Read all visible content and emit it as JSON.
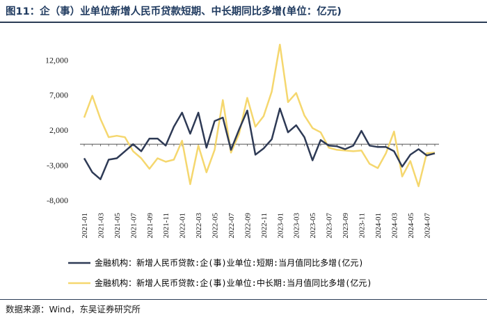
{
  "title": "图11：企（事）业单位新增人民币贷款短期、中长期同比多增(单位：亿元)",
  "source": "数据来源：Wind，东吴证券研究所",
  "colors": {
    "short": "#2e3a55",
    "long": "#f5d76e",
    "axis": "#555555",
    "text": "#1a1a1a"
  },
  "chart_data": {
    "type": "line",
    "ylim": [
      -8000,
      15000
    ],
    "yticks": [
      -8000,
      -3000,
      2000,
      7000,
      12000
    ],
    "ytick_labels": [
      "-8,000",
      "-3,000",
      "2,000",
      "7,000",
      "12,000"
    ],
    "x": [
      "2021-01",
      "2021-02",
      "2021-03",
      "2021-04",
      "2021-05",
      "2021-06",
      "2021-07",
      "2021-08",
      "2021-09",
      "2021-10",
      "2021-11",
      "2021-12",
      "2022-01",
      "2022-02",
      "2022-03",
      "2022-04",
      "2022-05",
      "2022-06",
      "2022-07",
      "2022-08",
      "2022-09",
      "2022-10",
      "2022-11",
      "2022-12",
      "2023-01",
      "2023-02",
      "2023-03",
      "2023-04",
      "2023-05",
      "2023-06",
      "2023-07",
      "2023-08",
      "2023-09",
      "2023-10",
      "2023-11",
      "2023-12",
      "2024-01",
      "2024-02",
      "2024-03",
      "2024-04",
      "2024-05",
      "2024-06",
      "2024-07",
      "2024-08"
    ],
    "xtick_labels": [
      "2021-01",
      "2021-03",
      "2021-05",
      "2021-07",
      "2021-09",
      "2021-11",
      "2022-01",
      "2022-03",
      "2022-05",
      "2022-07",
      "2022-09",
      "2022-11",
      "2023-01",
      "2023-03",
      "2023-05",
      "2023-07",
      "2023-09",
      "2023-11",
      "2024-01",
      "2024-03",
      "2024-05",
      "2024-07"
    ],
    "series": [
      {
        "name": "金融机构：新增人民币贷款:企(事)业单位:短期:当月值同比多增(亿元)",
        "color": "#2e3a55",
        "values": [
          -2000,
          -4000,
          -5000,
          -2200,
          -2000,
          -1000,
          0,
          -1000,
          800,
          800,
          -200,
          2500,
          4500,
          1500,
          4500,
          -500,
          3300,
          3800,
          -800,
          2100,
          4800,
          -1500,
          -600,
          700,
          5100,
          1700,
          2700,
          1000,
          -2300,
          600,
          -200,
          -300,
          -700,
          -200,
          1900,
          -200,
          -400,
          -400,
          -1000,
          -3200,
          -1500,
          -700,
          -1600,
          -1300
        ]
      },
      {
        "name": "金融机构：新增人民币贷款:企(事)业单位:中长期:当月值同比多增(亿元)",
        "color": "#f5d76e",
        "values": [
          3800,
          6900,
          3600,
          1000,
          1200,
          1000,
          -1000,
          -2000,
          -3500,
          -2000,
          -2500,
          -2200,
          500,
          -5700,
          -200,
          -4000,
          -800,
          6300,
          -1200,
          1500,
          6600,
          2500,
          4000,
          7500,
          14200,
          6000,
          7300,
          4100,
          2300,
          1700,
          -500,
          -800,
          -900,
          -1000,
          -900,
          -2800,
          -3400,
          -1300,
          1800,
          -4600,
          -2400,
          -6000,
          -1300,
          -1200
        ]
      }
    ]
  }
}
